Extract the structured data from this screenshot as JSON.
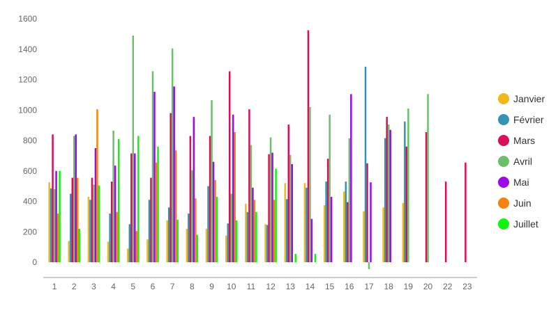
{
  "chart_data": {
    "type": "bar",
    "categories": [
      "1",
      "2",
      "3",
      "4",
      "5",
      "6",
      "7",
      "8",
      "9",
      "10",
      "11",
      "12",
      "13",
      "14",
      "15",
      "16",
      "17",
      "18",
      "19",
      "20",
      "22",
      "23"
    ],
    "ylim": [
      -100,
      1600
    ],
    "yticks": [
      0,
      200,
      400,
      600,
      800,
      1000,
      1200,
      1400,
      1600
    ],
    "grid": false,
    "legend_position": "right",
    "series": [
      {
        "name": "Janvier",
        "color": "#f0b81c",
        "values": [
          525,
          140,
          430,
          135,
          90,
          150,
          275,
          220,
          220,
          175,
          385,
          250,
          520,
          520,
          375,
          465,
          335,
          360,
          390,
          null,
          null,
          null
        ]
      },
      {
        "name": "Février",
        "color": "#3493b5",
        "values": [
          485,
          450,
          410,
          320,
          250,
          410,
          360,
          320,
          500,
          255,
          330,
          245,
          415,
          490,
          530,
          530,
          1285,
          815,
          925,
          null,
          null,
          null
        ]
      },
      {
        "name": "Mars",
        "color": "#d90f5a",
        "values": [
          840,
          555,
          555,
          530,
          715,
          555,
          980,
          830,
          830,
          1255,
          1005,
          710,
          905,
          1525,
          680,
          395,
          650,
          955,
          760,
          855,
          530,
          655
        ]
      },
      {
        "name": "Avril",
        "color": "#6dbf6d",
        "values": [
          480,
          830,
          510,
          865,
          1490,
          1255,
          1405,
          605,
          1065,
          450,
          770,
          820,
          705,
          1020,
          970,
          815,
          -45,
          905,
          1010,
          1105,
          null,
          null
        ]
      },
      {
        "name": "Mai",
        "color": "#9a0be8",
        "values": [
          600,
          840,
          750,
          635,
          715,
          1120,
          1155,
          955,
          660,
          970,
          490,
          720,
          645,
          285,
          430,
          1105,
          525,
          870,
          null,
          null,
          null,
          null
        ]
      },
      {
        "name": "Juin",
        "color": "#f5820f",
        "values": [
          320,
          555,
          1005,
          330,
          205,
          655,
          735,
          420,
          540,
          855,
          410,
          410,
          null,
          null,
          null,
          null,
          null,
          null,
          null,
          null,
          null,
          null
        ]
      },
      {
        "name": "Juillet",
        "color": "#13f213",
        "values": [
          600,
          220,
          505,
          810,
          830,
          760,
          280,
          180,
          430,
          275,
          330,
          615,
          55,
          55,
          null,
          null,
          null,
          null,
          null,
          null,
          null,
          null
        ]
      }
    ]
  }
}
